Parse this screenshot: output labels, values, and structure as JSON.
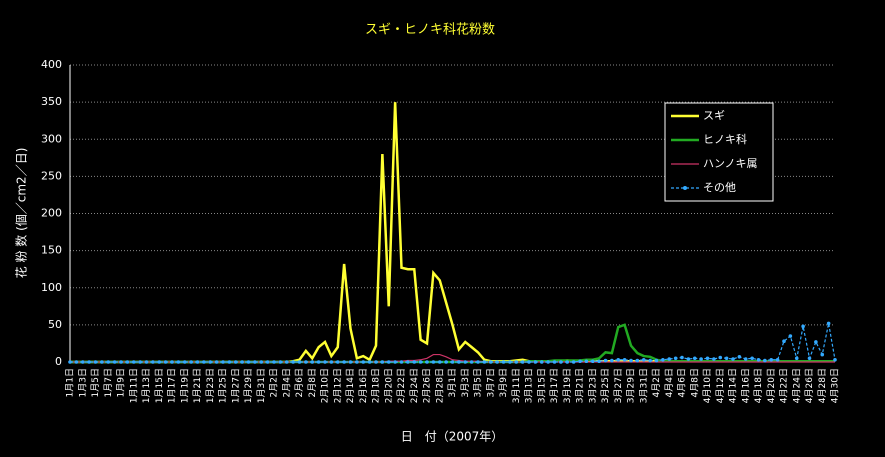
{
  "chart_data": {
    "type": "line",
    "title": "スギ・ヒノキ科花粉数",
    "y_label": "花 粉 数 (個／cm2／日)",
    "x_label": "日　付（2007年）",
    "categories": [
      "1月1日",
      null,
      "1月3日",
      null,
      "1月5日",
      null,
      "1月7日",
      null,
      "1月9日",
      null,
      "1月11日",
      null,
      "1月13日",
      null,
      "1月15日",
      null,
      "1月17日",
      null,
      "1月19日",
      null,
      "1月21日",
      null,
      "1月23日",
      null,
      "1月25日",
      null,
      "1月27日",
      null,
      "1月29日",
      null,
      "1月31日",
      null,
      "2月2日",
      null,
      "2月4日",
      null,
      "2月6日",
      null,
      "2月8日",
      null,
      "2月10日",
      null,
      "2月12日",
      null,
      "2月14日",
      null,
      "2月16日",
      null,
      "2月18日",
      null,
      "2月20日",
      null,
      "2月22日",
      null,
      "2月24日",
      null,
      "2月26日",
      null,
      "2月28日",
      null,
      "3月1日",
      null,
      "3月3日",
      null,
      "3月5日",
      null,
      "3月7日",
      null,
      "3月9日",
      null,
      "3月11日",
      null,
      "3月13日",
      null,
      "3月15日",
      null,
      "3月17日",
      null,
      "3月19日",
      null,
      "3月21日",
      null,
      "3月23日",
      null,
      "3月25日",
      null,
      "3月27日",
      null,
      "3月29日",
      null,
      "3月31日",
      null,
      "4月2日",
      null,
      "4月4日",
      null,
      "4月6日",
      null,
      "4月8日",
      null,
      "4月10日",
      null,
      "4月12日",
      null,
      "4月14日",
      null,
      "4月16日",
      null,
      "4月18日",
      null,
      "4月20日",
      null,
      "4月22日",
      null,
      "4月24日",
      null,
      "4月26日",
      null,
      "4月28日",
      null,
      "4月30日"
    ],
    "series": [
      {
        "name": "スギ",
        "color": "#ffff33",
        "width": 2.5,
        "dashed": false,
        "marker": false,
        "values": [
          0,
          0,
          0,
          0,
          0,
          0,
          0,
          0,
          0,
          0,
          0,
          0,
          0,
          0,
          0,
          0,
          0,
          0,
          0,
          0,
          0,
          0,
          0,
          0,
          0,
          0,
          0,
          0,
          0,
          0,
          0,
          0,
          0,
          0,
          0,
          1,
          3,
          15,
          5,
          20,
          27,
          8,
          20,
          132,
          45,
          5,
          8,
          3,
          22,
          280,
          75,
          350,
          127,
          125,
          125,
          30,
          25,
          120,
          110,
          80,
          50,
          17,
          27,
          20,
          13,
          3,
          1,
          1,
          1,
          1,
          2,
          3,
          1,
          1,
          1,
          1,
          1,
          1,
          2,
          1,
          1,
          1,
          1,
          1,
          1,
          1,
          1,
          1,
          1,
          1,
          1,
          1,
          1,
          1,
          1,
          1,
          1,
          1,
          1,
          1,
          1,
          1,
          1,
          1,
          1,
          1,
          1,
          1,
          1,
          1,
          1,
          1,
          1,
          1,
          1,
          1,
          1,
          1,
          1,
          1,
          1
        ]
      },
      {
        "name": "ヒノキ科",
        "color": "#22aa22",
        "width": 2.5,
        "dashed": false,
        "marker": false,
        "values": [
          0,
          0,
          0,
          0,
          0,
          0,
          0,
          0,
          0,
          0,
          0,
          0,
          0,
          0,
          0,
          0,
          0,
          0,
          0,
          0,
          0,
          0,
          0,
          0,
          0,
          0,
          0,
          0,
          0,
          0,
          0,
          0,
          0,
          0,
          0,
          0,
          0,
          0,
          0,
          0,
          0,
          0,
          0,
          0,
          0,
          0,
          0,
          0,
          0,
          0,
          0,
          0,
          0,
          0,
          0,
          0,
          0,
          0,
          0,
          0,
          0,
          0,
          0,
          0,
          0,
          0,
          0,
          0,
          0,
          0,
          0,
          0,
          1,
          1,
          1,
          1,
          2,
          2,
          2,
          2,
          2,
          3,
          3,
          5,
          13,
          12,
          47,
          50,
          22,
          12,
          8,
          7,
          3,
          1,
          1,
          1,
          1,
          1,
          1,
          1,
          1,
          1,
          1,
          1,
          1,
          1,
          1,
          1,
          1,
          1,
          1,
          1,
          1,
          1,
          1,
          1,
          1,
          1,
          1,
          1,
          1
        ]
      },
      {
        "name": "ハンノキ属",
        "color": "#cc3366",
        "width": 1.2,
        "dashed": false,
        "marker": false,
        "values": [
          0,
          0,
          0,
          0,
          0,
          0,
          0,
          0,
          0,
          0,
          0,
          0,
          0,
          0,
          0,
          0,
          0,
          0,
          0,
          0,
          0,
          0,
          0,
          0,
          0,
          0,
          0,
          0,
          0,
          0,
          0,
          0,
          0,
          0,
          0,
          0,
          0,
          0,
          0,
          0,
          0,
          0,
          0,
          0,
          0,
          0,
          0,
          0,
          0,
          0,
          1,
          1,
          1,
          2,
          2,
          3,
          5,
          10,
          10,
          7,
          3,
          2,
          1,
          1,
          1,
          0,
          0,
          0,
          0,
          0,
          0,
          0,
          0,
          0,
          0,
          0,
          0,
          0,
          0,
          0,
          0,
          0,
          0,
          0,
          0,
          0,
          0,
          0,
          0,
          0,
          0,
          0,
          0,
          0,
          0,
          0,
          0,
          0,
          0,
          0,
          0,
          0,
          0,
          0,
          0,
          0,
          0,
          0,
          0,
          0,
          0,
          0,
          0,
          0,
          0,
          0,
          0,
          0,
          0,
          0,
          0
        ]
      },
      {
        "name": "その他",
        "color": "#33aaff",
        "width": 1.2,
        "dashed": true,
        "marker": true,
        "values": [
          0,
          0,
          0,
          0,
          0,
          0,
          0,
          0,
          0,
          0,
          0,
          0,
          0,
          0,
          0,
          0,
          0,
          0,
          0,
          0,
          0,
          0,
          0,
          0,
          0,
          0,
          0,
          0,
          0,
          0,
          0,
          0,
          0,
          0,
          0,
          0,
          0,
          0,
          0,
          0,
          0,
          0,
          0,
          0,
          0,
          0,
          0,
          0,
          0,
          0,
          0,
          0,
          0,
          0,
          0,
          0,
          0,
          0,
          0,
          0,
          0,
          0,
          0,
          0,
          0,
          0,
          0,
          0,
          0,
          0,
          0,
          0,
          0,
          0,
          0,
          0,
          0,
          0,
          0,
          0,
          1,
          1,
          1,
          1,
          2,
          2,
          3,
          3,
          2,
          2,
          3,
          2,
          2,
          3,
          4,
          5,
          6,
          4,
          5,
          4,
          5,
          4,
          6,
          5,
          4,
          7,
          4,
          5,
          3,
          2,
          3,
          3,
          28,
          35,
          5,
          48,
          5,
          27,
          10,
          52,
          3
        ]
      }
    ],
    "ylim": [
      0,
      400
    ],
    "yticks": [
      0,
      50,
      100,
      150,
      200,
      250,
      300,
      350,
      400
    ],
    "grid": true,
    "legend": "upper right"
  }
}
